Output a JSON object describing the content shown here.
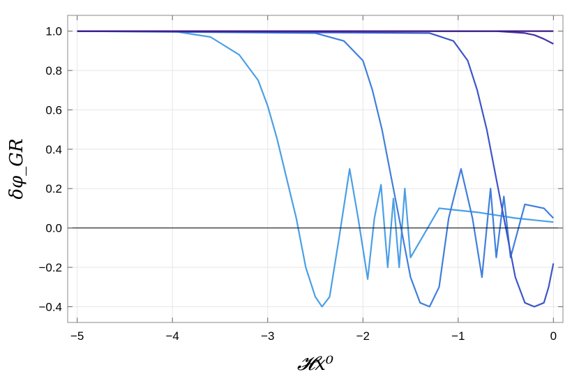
{
  "chart_data": {
    "type": "line",
    "xlabel": "𝓗x⁰",
    "ylabel": "δφ_GR",
    "xlim": [
      -5.1,
      0.1
    ],
    "ylim": [
      -0.48,
      1.08
    ],
    "x_ticks": [
      -5,
      -4,
      -3,
      -2,
      -1,
      0
    ],
    "x_tick_labels": [
      "−5",
      "−4",
      "−3",
      "−2",
      "−1",
      "0"
    ],
    "y_ticks": [
      -0.4,
      -0.2,
      0.0,
      0.2,
      0.4,
      0.6,
      0.8,
      1.0
    ],
    "y_tick_labels": [
      "−0.4",
      "−0.2",
      "0.0",
      "0.2",
      "0.4",
      "0.6",
      "0.8",
      "1.0"
    ],
    "grid": true,
    "zero_line": true,
    "legend": "none",
    "series": [
      {
        "color": "#4a9fe6",
        "x": [
          -5.0,
          -4.0,
          -3.6,
          -3.3,
          -3.1,
          -3.0,
          -2.9,
          -2.8,
          -2.7,
          -2.6,
          -2.5,
          -2.43,
          -2.35,
          -2.25,
          -2.14,
          -2.05,
          -1.95,
          -1.88,
          -1.81,
          -1.74,
          -1.68,
          -1.62,
          -1.56,
          -1.5,
          -1.2,
          -0.8,
          -0.4,
          0.0
        ],
        "y": [
          1.0,
          1.0,
          0.97,
          0.88,
          0.75,
          0.62,
          0.45,
          0.25,
          0.05,
          -0.2,
          -0.35,
          -0.4,
          -0.35,
          -0.05,
          0.3,
          0.05,
          -0.26,
          0.05,
          0.22,
          -0.2,
          0.15,
          -0.2,
          0.2,
          -0.15,
          0.1,
          0.08,
          0.05,
          0.03
        ]
      },
      {
        "color": "#3f7fdc",
        "x": [
          -5.0,
          -2.5,
          -2.2,
          -2.0,
          -1.9,
          -1.8,
          -1.7,
          -1.6,
          -1.5,
          -1.4,
          -1.3,
          -1.2,
          -1.1,
          -0.97,
          -0.85,
          -0.75,
          -0.66,
          -0.6,
          -0.52,
          -0.45,
          -0.3,
          -0.1,
          0.0
        ],
        "y": [
          1.0,
          0.99,
          0.95,
          0.85,
          0.7,
          0.5,
          0.25,
          0.0,
          -0.25,
          -0.38,
          -0.4,
          -0.3,
          0.05,
          0.3,
          0.05,
          -0.25,
          0.2,
          -0.15,
          0.16,
          -0.15,
          0.12,
          0.1,
          0.05
        ]
      },
      {
        "color": "#3d55c8",
        "x": [
          -5.0,
          -1.3,
          -1.05,
          -0.9,
          -0.8,
          -0.7,
          -0.6,
          -0.5,
          -0.4,
          -0.3,
          -0.2,
          -0.1,
          -0.05,
          0.0
        ],
        "y": [
          1.0,
          0.99,
          0.95,
          0.85,
          0.7,
          0.5,
          0.25,
          0.0,
          -0.25,
          -0.38,
          -0.4,
          -0.38,
          -0.3,
          -0.18
        ]
      },
      {
        "color": "#4a2fa8",
        "x": [
          -5.0,
          -0.6,
          -0.3,
          -0.2,
          -0.1,
          0.0
        ],
        "y": [
          1.0,
          1.0,
          0.99,
          0.98,
          0.96,
          0.935
        ]
      },
      {
        "color": "#3a1a8a",
        "x": [
          -5.0,
          0.0
        ],
        "y": [
          1.0,
          1.0
        ]
      }
    ]
  }
}
